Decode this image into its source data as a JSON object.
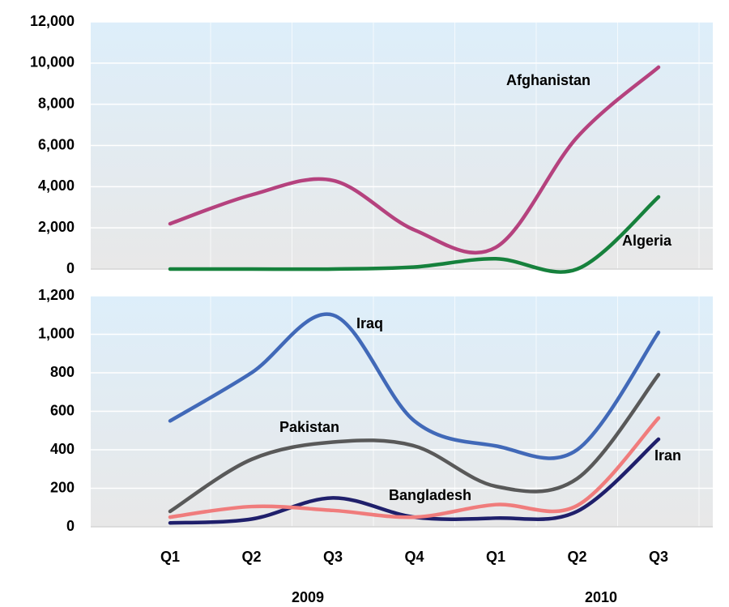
{
  "chart_data": [
    {
      "type": "line",
      "ylim": [
        0,
        12000
      ],
      "yticks": [
        0,
        {
          "value": 2000,
          "label": "2,000"
        },
        {
          "value": 4000,
          "label": "4,000"
        },
        {
          "value": 6000,
          "label": "6,000"
        },
        {
          "value": 8000,
          "label": "8,000"
        },
        {
          "value": 10000,
          "label": "10,000"
        },
        {
          "value": 12000,
          "label": "12,000"
        }
      ],
      "grid": true,
      "series": [
        {
          "name": "Afghanistan",
          "color": "#b5427e",
          "values": [
            2200,
            3600,
            4300,
            1900,
            1050,
            6400,
            9800
          ]
        },
        {
          "name": "Algeria",
          "color": "#16813c",
          "values": [
            0,
            0,
            0,
            100,
            500,
            0,
            3500
          ]
        }
      ]
    },
    {
      "type": "line",
      "categories": [
        "Q1",
        "Q2",
        "Q3",
        "Q4",
        "Q1",
        "Q2",
        "Q3"
      ],
      "years": [
        "2009",
        "2010"
      ],
      "ylim": [
        0,
        1200
      ],
      "yticks": [
        0,
        200,
        400,
        600,
        800,
        {
          "value": 1000,
          "label": "1,000"
        },
        {
          "value": 1200,
          "label": "1,200"
        }
      ],
      "grid": true,
      "series": [
        {
          "name": "Iraq",
          "color": "#4169b8",
          "values": [
            550,
            800,
            1100,
            550,
            420,
            400,
            1010
          ]
        },
        {
          "name": "Pakistan",
          "color": "#595959",
          "values": [
            80,
            350,
            440,
            420,
            210,
            250,
            790
          ]
        },
        {
          "name": "Iran",
          "color": "#1f1f6b",
          "values": [
            20,
            40,
            150,
            50,
            45,
            80,
            455
          ]
        },
        {
          "name": "Bangladesh",
          "color": "#f07c7c",
          "values": [
            50,
            105,
            85,
            50,
            115,
            110,
            565
          ]
        }
      ]
    }
  ]
}
